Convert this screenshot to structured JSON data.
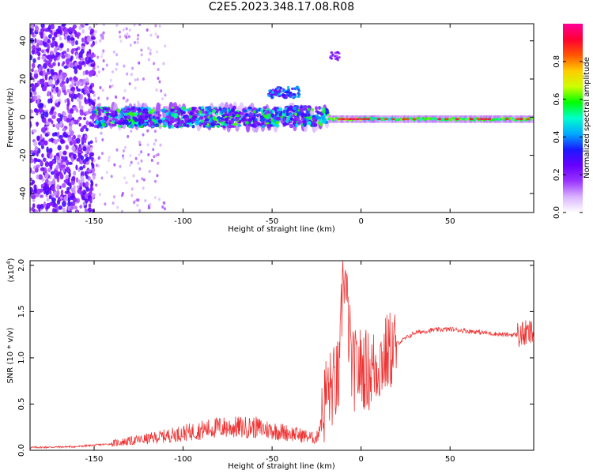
{
  "title": "C2E5.2023.348.17.08.R08",
  "chart_data": [
    {
      "type": "heatmap",
      "xlabel": "Height of straight line (km)",
      "ylabel": "Frequency (Hz)",
      "xlim": [
        -186,
        97
      ],
      "ylim": [
        -50,
        49
      ],
      "xticks": [
        -150,
        -100,
        -50,
        0,
        50
      ],
      "yticks": [
        -40,
        -20,
        0,
        20,
        40
      ],
      "colorbar": {
        "label": "Normalized spectral amplitude",
        "range": [
          0,
          1
        ],
        "ticks": [
          "0.0",
          "0.2",
          "0.4",
          "0.6",
          "0.8"
        ],
        "colormap": [
          "#ffffff",
          "#d9b3ff",
          "#9933ff",
          "#6600ff",
          "#1a1aff",
          "#00aaff",
          "#00ffcc",
          "#00ff00",
          "#ccff00",
          "#ffcc00",
          "#ff5500",
          "#ff0033",
          "#ff0099"
        ]
      },
      "grid": false,
      "segments": [
        {
          "x_range": [
            -186,
            -150
          ],
          "description_level": 0.25,
          "f_spread": 50
        },
        {
          "x_range": [
            -150,
            -20
          ],
          "f_center": 0,
          "f_spread": 6,
          "peak_level": 0.5
        },
        {
          "x_range": [
            -20,
            97
          ],
          "f_center": -1,
          "f_spread": 2,
          "peak_level": 0.95
        }
      ]
    },
    {
      "type": "line",
      "xlabel": "Height of straight line (km)",
      "ylabel": "SNR (10 * v/v)",
      "y_multiplier": "(x10^4)",
      "y_multiplier_base": "(x10",
      "y_multiplier_exp": "4",
      "y_multiplier_close": ")",
      "xlim": [
        -186,
        97
      ],
      "ylim": [
        0,
        2.05
      ],
      "xticks": [
        -150,
        -100,
        -50,
        0,
        50
      ],
      "yticks": [
        "0.0",
        "0.5",
        "1.0",
        "1.5",
        "2.0"
      ],
      "grid": false,
      "series": [
        {
          "color": "#ee3333",
          "x": [
            -186,
            -160,
            -140,
            -120,
            -100,
            -80,
            -60,
            -40,
            -30,
            -25,
            -22,
            -20,
            -15,
            -12,
            -10,
            -5,
            0,
            5,
            10,
            15,
            20,
            30,
            40,
            50,
            60,
            70,
            80,
            90,
            97
          ],
          "y": [
            0.02,
            0.03,
            0.06,
            0.1,
            0.15,
            0.2,
            0.2,
            0.15,
            0.12,
            0.1,
            0.3,
            0.6,
            0.7,
            0.8,
            2.05,
            0.85,
            0.9,
            0.85,
            0.95,
            1.05,
            1.15,
            1.27,
            1.3,
            1.31,
            1.29,
            1.27,
            1.25,
            1.25,
            1.27
          ]
        }
      ]
    }
  ]
}
